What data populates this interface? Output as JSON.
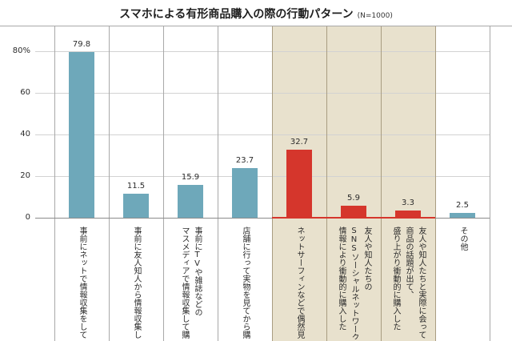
{
  "chart_data": {
    "type": "bar",
    "title": "スマホによる有形商品購入の際の行動パターン",
    "subtitle": "(N=1000)",
    "xlabel": "",
    "ylabel": "",
    "categories": [
      [
        "事前にネットで情報収集をして"
      ],
      [
        "事前に友人知人から情報収集し"
      ],
      [
        "事前にTVや雑誌などの",
        "マスメディアで情報収集して購"
      ],
      [
        "店舗に行って実物を見てから購"
      ],
      [
        "ネットサーフィンなどで偶然見"
      ],
      [
        "友人や知人たちの",
        "SNSソーシャルネットワーク",
        "情報により衝動的に購入した"
      ],
      [
        "友人や知人たちと実際に会って",
        "商品の話題が出て、",
        "盛り上がり衝動的に購入した"
      ],
      [
        "その他"
      ]
    ],
    "values": [
      79.8,
      11.5,
      15.9,
      23.7,
      32.7,
      5.9,
      3.3,
      2.5
    ],
    "highlighted": [
      false,
      false,
      false,
      false,
      true,
      true,
      true,
      false
    ],
    "ylim": [
      0,
      80
    ],
    "y_ticks": [
      0,
      20,
      40,
      60,
      80
    ],
    "y_tick_labels": [
      "0",
      "20",
      "40",
      "60",
      "80%"
    ],
    "grid": true,
    "colors": {
      "bar": "#6ea8ba",
      "bar_highlight": "#d5362c",
      "highlight_band": "#e8e1cd",
      "highlight_border": "#a99d82",
      "grid": "#d2d2d2",
      "divider": "#a8a8a8",
      "baseline": "#8c8c8c",
      "baseline_highlight": "#d5362c"
    }
  }
}
